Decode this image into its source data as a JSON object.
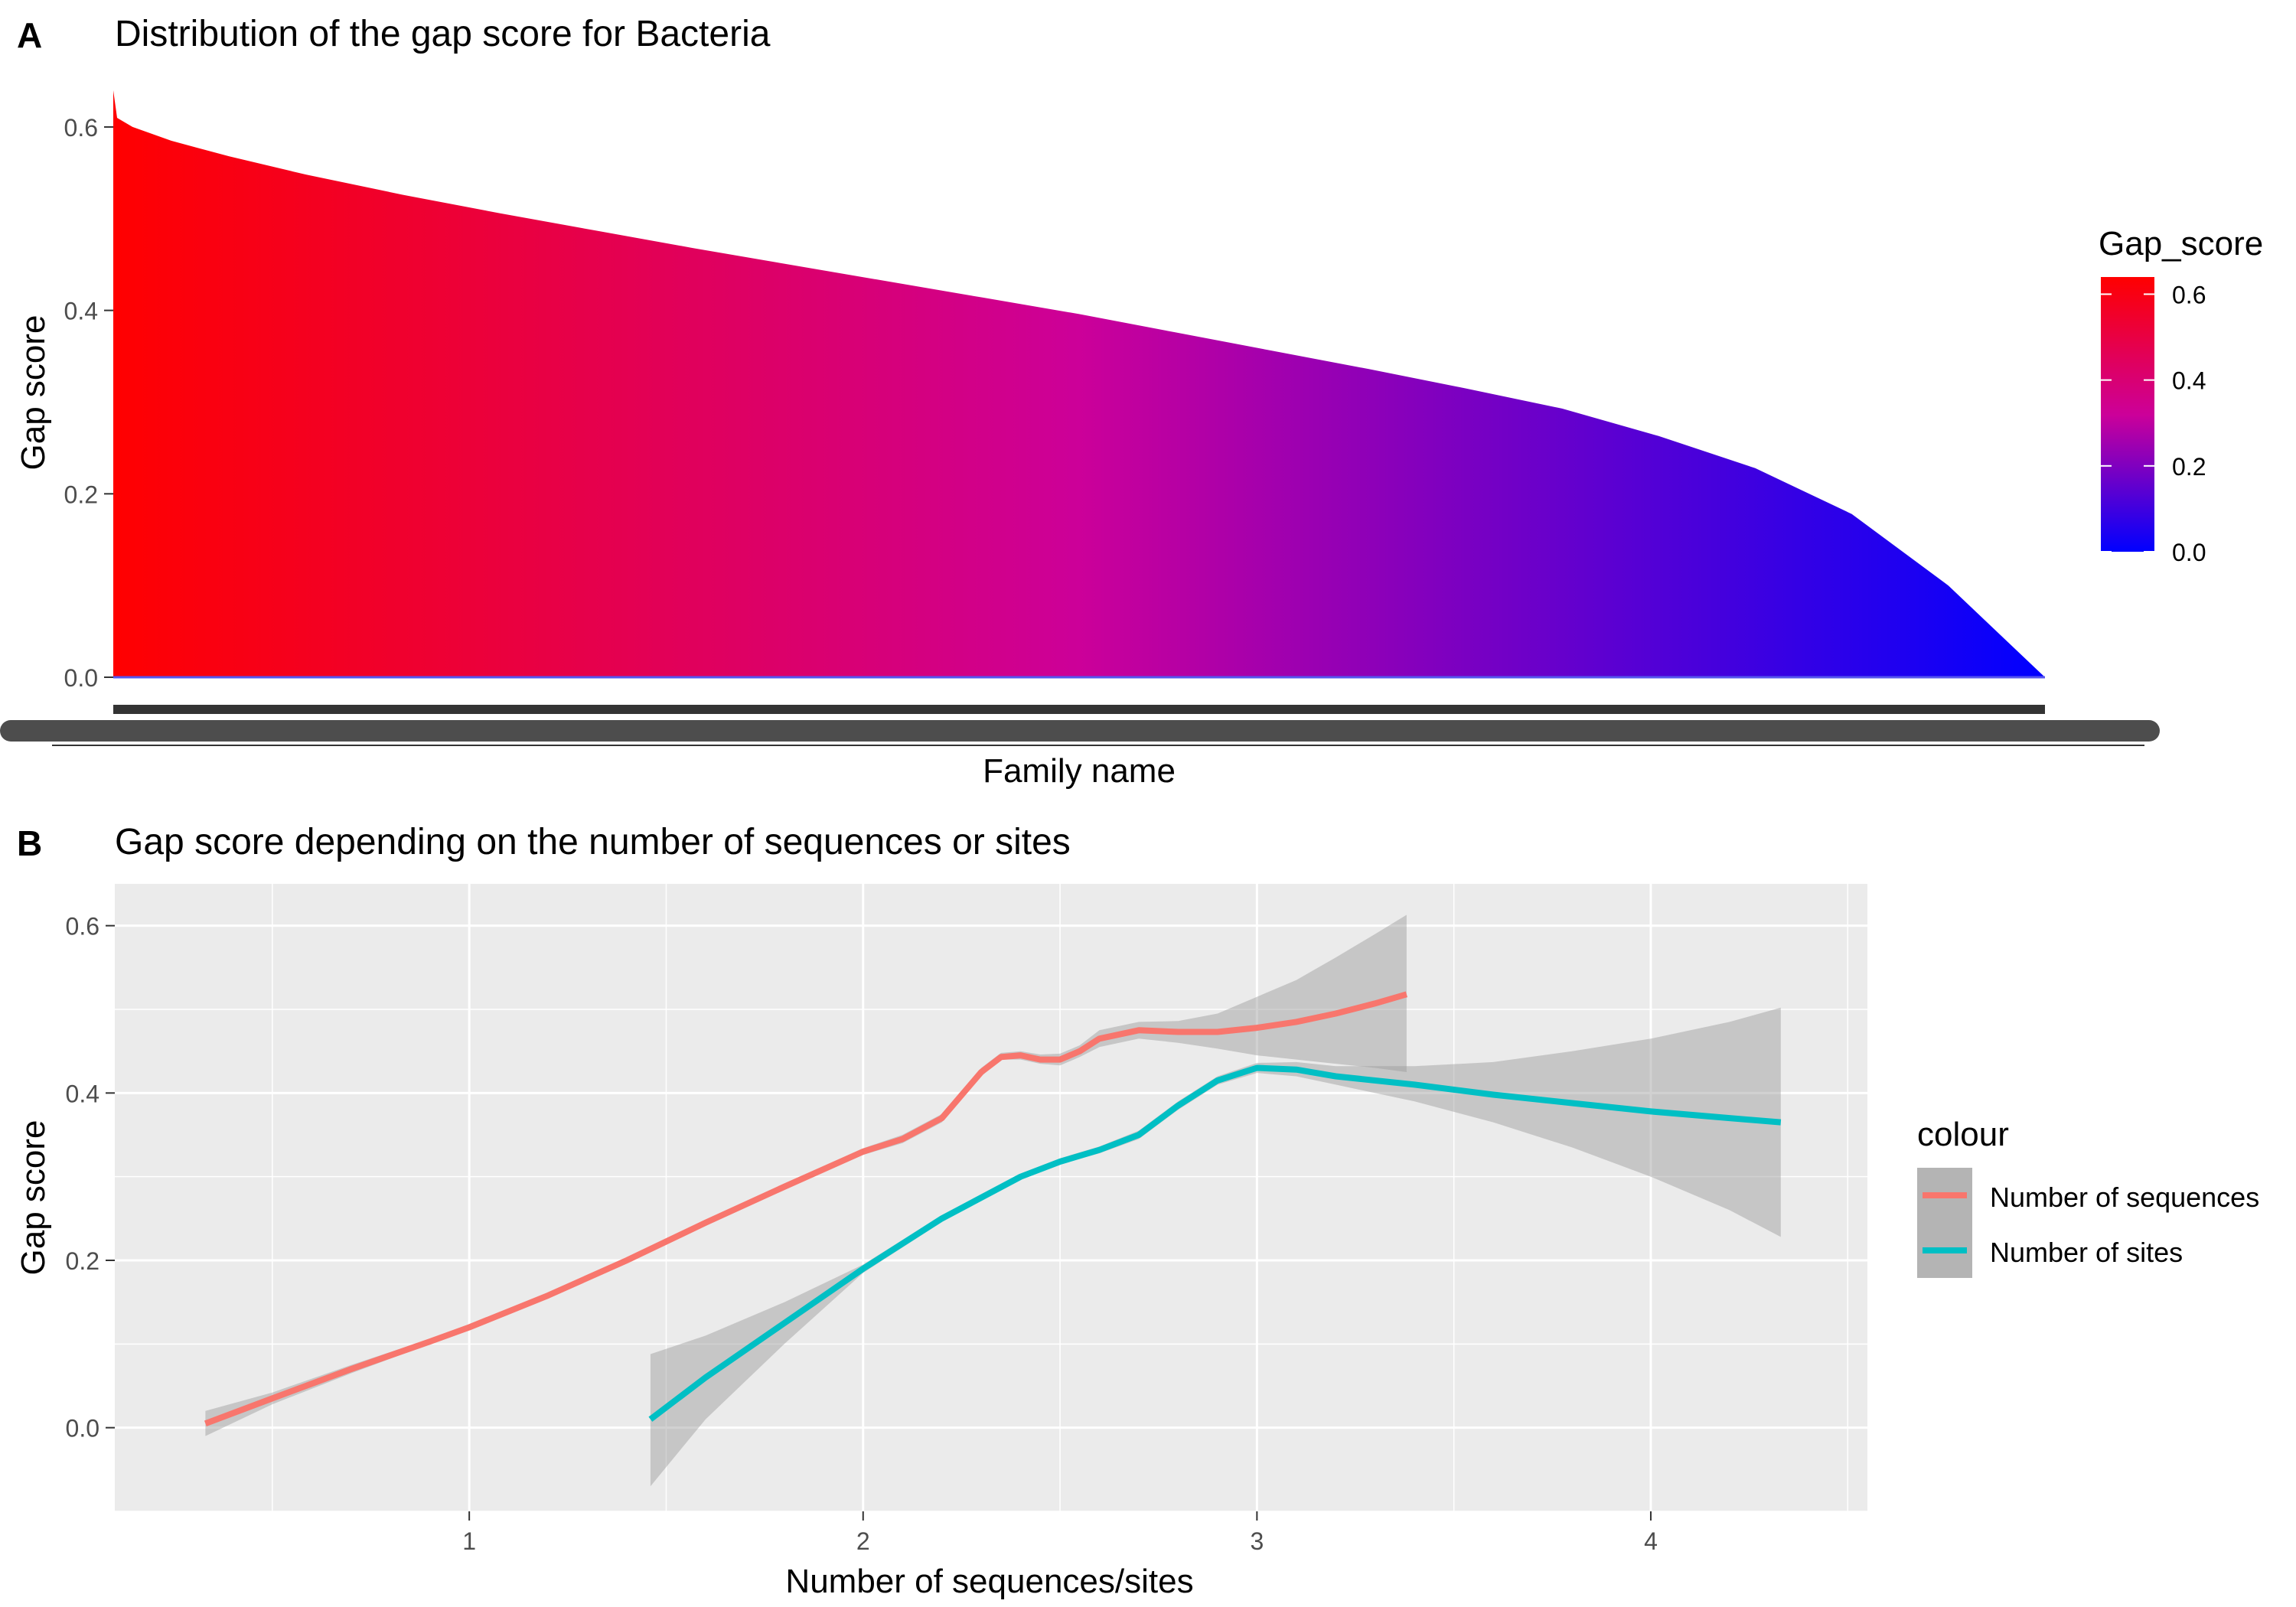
{
  "panels": {
    "a": {
      "tag": "A",
      "title": "Distribution of the gap score for Bacteria"
    },
    "b": {
      "tag": "B",
      "title": "Gap score depending on the number of sequences or sites"
    }
  },
  "chart_data": [
    {
      "type": "area",
      "title": "Distribution of the gap score for Bacteria",
      "xlabel": "Family name",
      "ylabel": "Gap score",
      "ylim": [
        0,
        0.64
      ],
      "yticks": [
        0.0,
        0.2,
        0.4,
        0.6
      ],
      "ytick_labels": [
        "0.0",
        "0.2",
        "0.4",
        "0.6"
      ],
      "x_description": "families sorted by decreasing gap score",
      "series": [
        {
          "x": [
            0,
            0.002,
            0.01,
            0.03,
            0.06,
            0.1,
            0.15,
            0.2,
            0.25,
            0.3,
            0.35,
            0.4,
            0.45,
            0.5,
            0.55,
            0.6,
            0.65,
            0.7,
            0.75,
            0.8,
            0.85,
            0.9,
            0.95,
            0.98,
            1.0
          ],
          "values": [
            0.64,
            0.61,
            0.6,
            0.585,
            0.568,
            0.548,
            0.526,
            0.506,
            0.487,
            0.468,
            0.45,
            0.432,
            0.414,
            0.396,
            0.376,
            0.356,
            0.336,
            0.315,
            0.293,
            0.263,
            0.228,
            0.178,
            0.1,
            0.04,
            0.0
          ]
        }
      ],
      "legend": {
        "title": "Gap_score",
        "ticks": [
          0.0,
          0.2,
          0.4,
          0.6
        ],
        "tick_labels": [
          "0.0",
          "0.2",
          "0.4",
          "0.6"
        ],
        "range": [
          0,
          0.64
        ],
        "colors": {
          "low": "#0000ff",
          "mid": "#cc0099",
          "high": "#ff0000"
        },
        "placement": "right"
      }
    },
    {
      "type": "line",
      "title": "Gap score depending on the number of sequences or sites",
      "xlabel": "Number of sequences/sites",
      "ylabel": "Gap score",
      "xlim": [
        0.1,
        4.55
      ],
      "ylim": [
        -0.1,
        0.65
      ],
      "xticks": [
        1,
        2,
        3,
        4
      ],
      "xtick_labels": [
        "1",
        "2",
        "3",
        "4"
      ],
      "yticks": [
        0.0,
        0.2,
        0.4,
        0.6
      ],
      "ytick_labels": [
        "0.0",
        "0.2",
        "0.4",
        "0.6"
      ],
      "grid": true,
      "legend": {
        "title": "colour",
        "placement": "right"
      },
      "series": [
        {
          "name": "Number of sequences",
          "color": "#f8766d",
          "x": [
            0.33,
            0.5,
            0.7,
            0.9,
            1.0,
            1.2,
            1.4,
            1.6,
            1.8,
            2.0,
            2.1,
            2.2,
            2.3,
            2.35,
            2.4,
            2.45,
            2.5,
            2.55,
            2.6,
            2.7,
            2.8,
            2.9,
            3.0,
            3.1,
            3.2,
            3.3,
            3.38
          ],
          "values": [
            0.005,
            0.035,
            0.07,
            0.103,
            0.12,
            0.158,
            0.2,
            0.245,
            0.288,
            0.33,
            0.345,
            0.37,
            0.425,
            0.443,
            0.445,
            0.44,
            0.44,
            0.45,
            0.465,
            0.475,
            0.473,
            0.473,
            0.478,
            0.485,
            0.495,
            0.507,
            0.518
          ],
          "ci_lower": [
            -0.01,
            0.028,
            0.065,
            0.1,
            0.117,
            0.155,
            0.197,
            0.242,
            0.285,
            0.326,
            0.34,
            0.365,
            0.42,
            0.44,
            0.44,
            0.435,
            0.433,
            0.443,
            0.455,
            0.465,
            0.46,
            0.453,
            0.445,
            0.44,
            0.435,
            0.43,
            0.425
          ],
          "ci_upper": [
            0.02,
            0.042,
            0.075,
            0.106,
            0.123,
            0.161,
            0.203,
            0.248,
            0.291,
            0.334,
            0.35,
            0.375,
            0.43,
            0.448,
            0.45,
            0.446,
            0.447,
            0.457,
            0.475,
            0.485,
            0.486,
            0.495,
            0.515,
            0.535,
            0.562,
            0.59,
            0.613
          ]
        },
        {
          "name": "Number of sites",
          "color": "#00bfc4",
          "x": [
            1.46,
            1.6,
            1.8,
            2.0,
            2.2,
            2.4,
            2.5,
            2.6,
            2.7,
            2.8,
            2.9,
            3.0,
            3.1,
            3.2,
            3.4,
            3.6,
            3.8,
            4.0,
            4.2,
            4.33
          ],
          "values": [
            0.01,
            0.06,
            0.125,
            0.19,
            0.25,
            0.3,
            0.318,
            0.332,
            0.35,
            0.385,
            0.415,
            0.43,
            0.428,
            0.42,
            0.41,
            0.398,
            0.388,
            0.378,
            0.37,
            0.365
          ],
          "ci_lower": [
            -0.07,
            0.01,
            0.1,
            0.185,
            0.246,
            0.297,
            0.315,
            0.328,
            0.345,
            0.38,
            0.41,
            0.424,
            0.42,
            0.41,
            0.39,
            0.365,
            0.335,
            0.3,
            0.26,
            0.228
          ],
          "ci_upper": [
            0.088,
            0.11,
            0.15,
            0.195,
            0.254,
            0.303,
            0.322,
            0.336,
            0.355,
            0.39,
            0.42,
            0.436,
            0.437,
            0.432,
            0.432,
            0.437,
            0.45,
            0.465,
            0.485,
            0.502
          ]
        }
      ]
    }
  ]
}
